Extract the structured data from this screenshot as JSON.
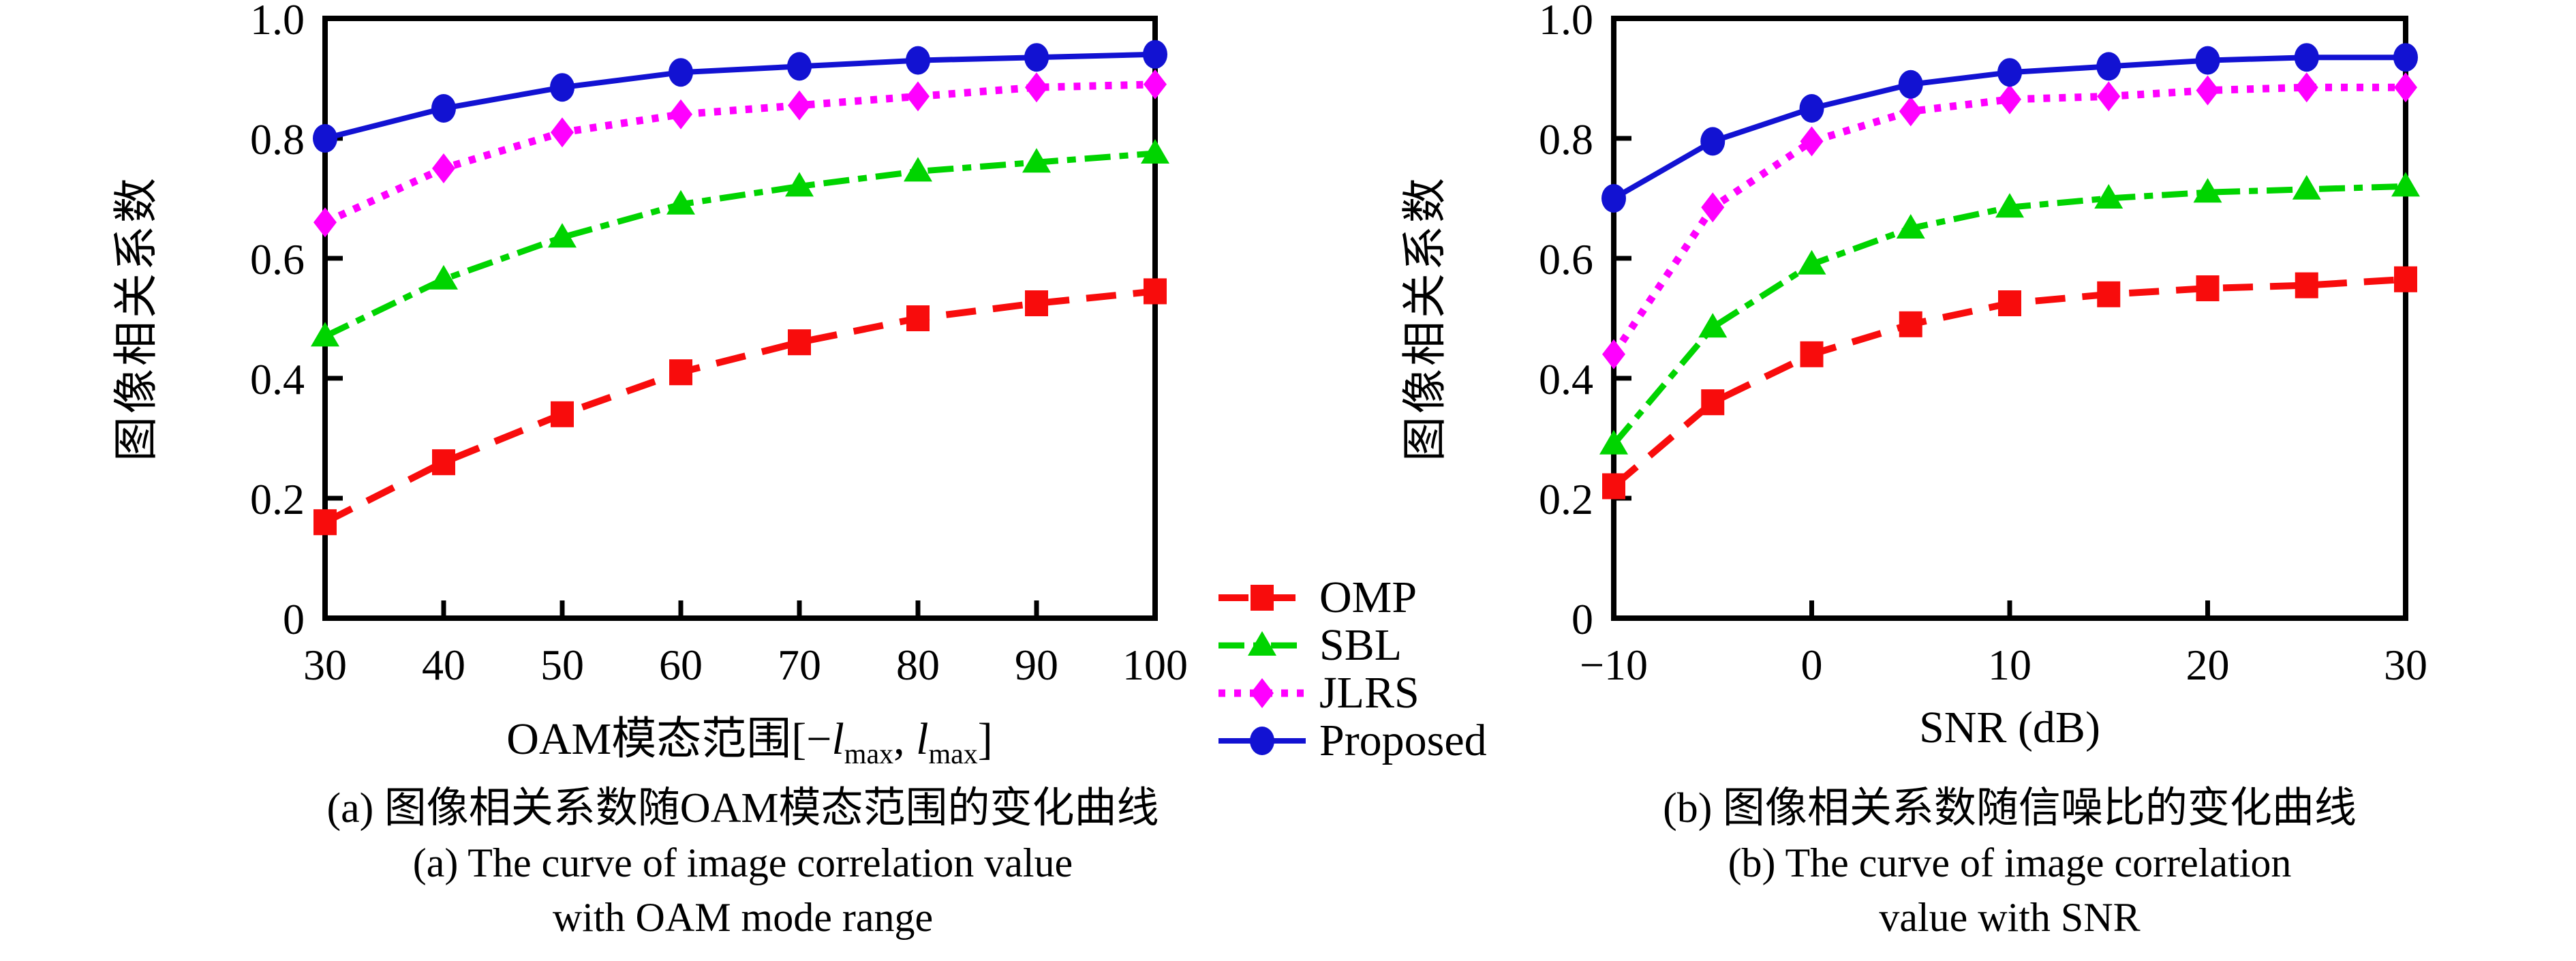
{
  "colors": {
    "background": "#ffffff",
    "axis": "#000000",
    "omp": "#f80c0c",
    "sbl": "#00d400",
    "jlrs": "#ff00ff",
    "proposed": "#1212d2"
  },
  "series_styles": {
    "omp": {
      "color": "#f80c0c",
      "dash": "44 25",
      "width": 10,
      "marker": "square"
    },
    "sbl": {
      "color": "#00d400",
      "dash": "38 13 13 13",
      "width": 9,
      "marker": "triangle"
    },
    "jlrs": {
      "color": "#ff00ff",
      "dash": "10 13",
      "width": 11,
      "marker": "diamond"
    },
    "proposed": {
      "color": "#1212d2",
      "dash": "",
      "width": 8,
      "marker": "circle"
    }
  },
  "legend": {
    "items": [
      {
        "key": "omp",
        "label": "OMP"
      },
      {
        "key": "sbl",
        "label": "SBL"
      },
      {
        "key": "jlrs",
        "label": "JLRS"
      },
      {
        "key": "proposed",
        "label": "Proposed"
      }
    ]
  },
  "chart_data": [
    {
      "id": "oam-range",
      "type": "line",
      "title": "",
      "ylabel": "图像相关系数",
      "xlabel_text": "OAM模态范围[−lmax, lmax]",
      "xlabel_segments": [
        {
          "text": "OAM模态范围[−"
        },
        {
          "text": "l",
          "italic": true
        },
        {
          "text": "max",
          "sub": true
        },
        {
          "text": ", "
        },
        {
          "text": "l",
          "italic": true
        },
        {
          "text": "max",
          "sub": true
        },
        {
          "text": "]"
        }
      ],
      "xlim": [
        30,
        100
      ],
      "ylim": [
        0,
        1.0
      ],
      "grid": false,
      "xticks": {
        "values": [
          30,
          40,
          50,
          60,
          70,
          80,
          90,
          100
        ],
        "labels": [
          "30",
          "40",
          "50",
          "60",
          "70",
          "80",
          "90",
          "100"
        ]
      },
      "yticks": {
        "values": [
          0,
          0.2,
          0.4,
          0.6,
          0.8,
          1.0
        ],
        "labels": [
          "0",
          "0.2",
          "0.4",
          "0.6",
          "0.8",
          "1.0"
        ]
      },
      "x": [
        30,
        40,
        50,
        60,
        70,
        80,
        90,
        100
      ],
      "series": [
        {
          "key": "omp",
          "name": "OMP",
          "values": [
            0.16,
            0.26,
            0.34,
            0.41,
            0.46,
            0.5,
            0.525,
            0.545
          ]
        },
        {
          "key": "sbl",
          "name": "SBL",
          "values": [
            0.47,
            0.565,
            0.635,
            0.69,
            0.72,
            0.745,
            0.76,
            0.775
          ]
        },
        {
          "key": "jlrs",
          "name": "JLRS",
          "values": [
            0.66,
            0.75,
            0.81,
            0.84,
            0.855,
            0.87,
            0.885,
            0.89
          ]
        },
        {
          "key": "proposed",
          "name": "Proposed",
          "values": [
            0.8,
            0.85,
            0.885,
            0.91,
            0.92,
            0.93,
            0.935,
            0.94
          ]
        }
      ],
      "caption_lines": [
        "(a) 图像相关系数随OAM模态范围的变化曲线",
        "(a) The curve of image correlation value",
        "with OAM mode range"
      ]
    },
    {
      "id": "snr",
      "type": "line",
      "title": "",
      "ylabel": "图像相关系数",
      "xlabel_text": "SNR (dB)",
      "xlabel_segments": [
        {
          "text": "SNR (dB)"
        }
      ],
      "xlim": [
        -10,
        30
      ],
      "ylim": [
        0,
        1.0
      ],
      "grid": false,
      "xticks": {
        "values": [
          -10,
          0,
          10,
          20,
          30
        ],
        "labels": [
          "−10",
          "0",
          "10",
          "20",
          "30"
        ]
      },
      "yticks": {
        "values": [
          0,
          0.2,
          0.4,
          0.6,
          0.8,
          1.0
        ],
        "labels": [
          "0",
          "0.2",
          "0.4",
          "0.6",
          "0.8",
          "1.0"
        ]
      },
      "x": [
        -10,
        -5,
        0,
        5,
        10,
        15,
        20,
        25,
        30
      ],
      "series": [
        {
          "key": "omp",
          "name": "OMP",
          "values": [
            0.22,
            0.36,
            0.44,
            0.49,
            0.525,
            0.54,
            0.55,
            0.555,
            0.565
          ]
        },
        {
          "key": "sbl",
          "name": "SBL",
          "values": [
            0.29,
            0.485,
            0.59,
            0.65,
            0.685,
            0.7,
            0.71,
            0.715,
            0.72
          ]
        },
        {
          "key": "jlrs",
          "name": "JLRS",
          "values": [
            0.44,
            0.685,
            0.795,
            0.845,
            0.865,
            0.87,
            0.88,
            0.885,
            0.885
          ]
        },
        {
          "key": "proposed",
          "name": "Proposed",
          "values": [
            0.7,
            0.795,
            0.85,
            0.89,
            0.91,
            0.92,
            0.93,
            0.935,
            0.935
          ]
        }
      ],
      "caption_lines": [
        "(b) 图像相关系数随信噪比的变化曲线",
        "(b) The curve of image correlation",
        "value with SNR"
      ]
    }
  ]
}
